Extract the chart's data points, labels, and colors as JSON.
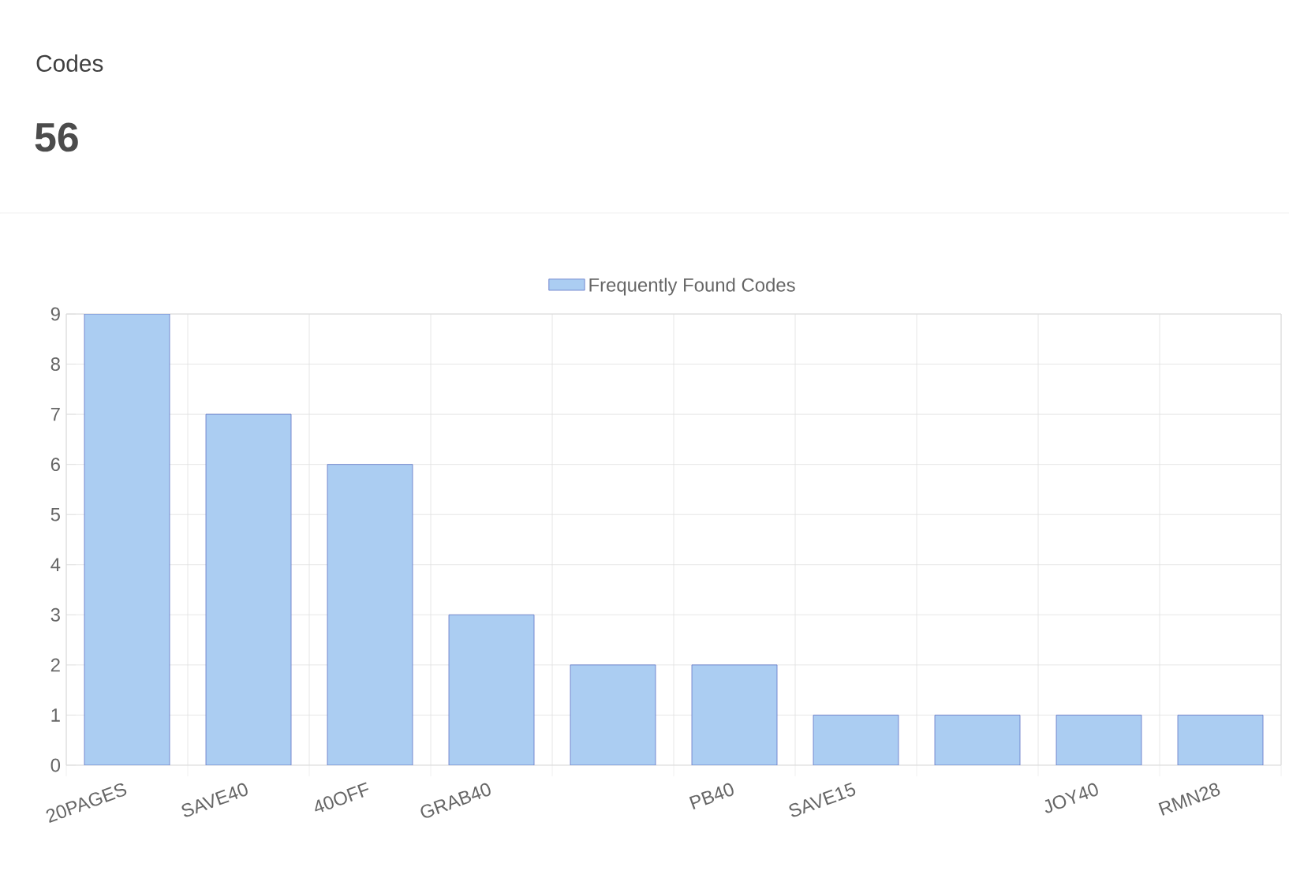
{
  "chart_data": {
    "type": "bar",
    "title": "Codes",
    "subtitle": "56",
    "categories": [
      "20PAGES",
      "SAVE40",
      "40OFF",
      "GRAB40",
      null,
      "PB40",
      "SAVE15",
      null,
      "JOY40",
      "RMN28"
    ],
    "series": [
      {
        "name": "Frequently Found Codes",
        "color": "#abcdf2",
        "values": [
          9,
          7,
          6,
          3,
          2,
          2,
          1,
          1,
          1,
          1
        ]
      }
    ],
    "ylim": [
      0,
      9
    ],
    "yticks": [
      0,
      1,
      2,
      3,
      4,
      5,
      6,
      7,
      8,
      9
    ],
    "grid": true,
    "legend": "top"
  }
}
